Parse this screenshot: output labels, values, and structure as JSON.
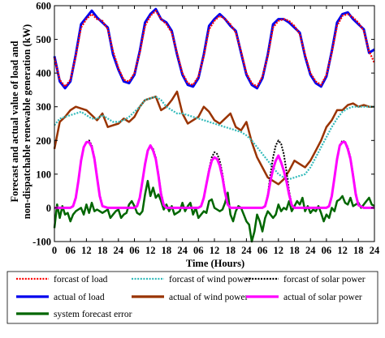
{
  "chart_data": {
    "type": "line",
    "title": "",
    "xlabel": "Time (Hours)",
    "ylabel_lines": [
      "Forecast and actual value of load and",
      "non-dispatchable renewable generation (kW)"
    ],
    "x_tick_labels": [
      "0",
      "06",
      "12",
      "18",
      "24",
      "06",
      "12",
      "18",
      "24",
      "06",
      "12",
      "18",
      "24",
      "06",
      "12",
      "18",
      "24",
      "06",
      "12",
      "18",
      "24"
    ],
    "xlim": [
      0,
      120
    ],
    "ylim": [
      -100,
      600
    ],
    "y_ticks": [
      -100,
      0,
      100,
      200,
      300,
      400,
      500,
      600
    ],
    "grid": false,
    "legend_placement": "below",
    "series": [
      {
        "name": "forcast of load",
        "color": "#ff0000",
        "style": "dotted",
        "width": 2.2,
        "x": [
          0,
          2,
          4,
          6,
          8,
          10,
          12,
          14,
          16,
          18,
          20,
          22,
          24,
          26,
          28,
          30,
          32,
          34,
          36,
          38,
          40,
          42,
          44,
          46,
          48,
          50,
          52,
          54,
          56,
          58,
          60,
          62,
          64,
          66,
          68,
          70,
          72,
          74,
          76,
          78,
          80,
          82,
          84,
          86,
          88,
          90,
          92,
          94,
          96,
          98,
          100,
          102,
          104,
          106,
          108,
          110,
          112,
          114,
          116,
          118,
          120
        ],
        "values": [
          445,
          380,
          360,
          380,
          450,
          535,
          560,
          575,
          560,
          555,
          530,
          465,
          415,
          380,
          375,
          400,
          460,
          540,
          570,
          585,
          560,
          545,
          520,
          460,
          400,
          370,
          365,
          390,
          450,
          530,
          555,
          570,
          560,
          545,
          520,
          465,
          400,
          370,
          360,
          390,
          450,
          535,
          555,
          560,
          555,
          540,
          515,
          455,
          400,
          375,
          365,
          395,
          460,
          540,
          570,
          575,
          565,
          550,
          525,
          465,
          430
        ]
      },
      {
        "name": "actual of load",
        "color": "#0000ee",
        "style": "solid",
        "width": 3,
        "x": [
          0,
          2,
          4,
          6,
          8,
          10,
          12,
          14,
          16,
          18,
          20,
          22,
          24,
          26,
          28,
          30,
          32,
          34,
          36,
          38,
          40,
          42,
          44,
          46,
          48,
          50,
          52,
          54,
          56,
          58,
          60,
          62,
          64,
          66,
          68,
          70,
          72,
          74,
          76,
          78,
          80,
          82,
          84,
          86,
          88,
          90,
          92,
          94,
          96,
          98,
          100,
          102,
          104,
          106,
          108,
          110,
          112,
          114,
          116,
          118,
          120
        ],
        "values": [
          450,
          375,
          355,
          375,
          455,
          545,
          565,
          585,
          565,
          550,
          535,
          455,
          410,
          375,
          370,
          395,
          465,
          550,
          575,
          590,
          560,
          550,
          525,
          455,
          395,
          365,
          360,
          385,
          455,
          540,
          560,
          575,
          560,
          540,
          525,
          460,
          395,
          365,
          355,
          385,
          455,
          545,
          560,
          560,
          550,
          535,
          520,
          450,
          395,
          370,
          360,
          390,
          465,
          550,
          575,
          580,
          560,
          545,
          530,
          460,
          470
        ]
      },
      {
        "name": "forcast of wind power",
        "color": "#33bbbb",
        "style": "dotted",
        "width": 2.2,
        "x": [
          0,
          2,
          4,
          6,
          8,
          10,
          12,
          14,
          16,
          18,
          20,
          22,
          24,
          26,
          28,
          30,
          32,
          34,
          36,
          38,
          40,
          42,
          44,
          46,
          48,
          50,
          52,
          54,
          56,
          58,
          60,
          62,
          64,
          66,
          68,
          70,
          72,
          74,
          76,
          78,
          80,
          82,
          84,
          86,
          88,
          90,
          92,
          94,
          96,
          98,
          100,
          102,
          104,
          106,
          108,
          110,
          112,
          114,
          116,
          118,
          120
        ],
        "values": [
          245,
          265,
          270,
          275,
          280,
          285,
          275,
          265,
          265,
          275,
          265,
          255,
          255,
          260,
          270,
          285,
          300,
          320,
          325,
          330,
          320,
          300,
          290,
          280,
          280,
          275,
          270,
          265,
          260,
          255,
          250,
          245,
          240,
          235,
          230,
          225,
          215,
          200,
          180,
          160,
          140,
          120,
          100,
          90,
          85,
          90,
          95,
          100,
          120,
          150,
          180,
          210,
          240,
          265,
          285,
          295,
          300,
          300,
          300,
          300,
          300
        ]
      },
      {
        "name": "actual of wind power",
        "color": "#993300",
        "style": "solid",
        "width": 2.5,
        "x": [
          0,
          2,
          4,
          6,
          8,
          10,
          12,
          14,
          16,
          18,
          20,
          22,
          24,
          26,
          28,
          30,
          32,
          34,
          36,
          38,
          40,
          42,
          44,
          46,
          48,
          50,
          52,
          54,
          56,
          58,
          60,
          62,
          64,
          66,
          68,
          70,
          72,
          74,
          76,
          78,
          80,
          82,
          84,
          86,
          88,
          90,
          92,
          94,
          96,
          98,
          100,
          102,
          104,
          106,
          108,
          110,
          112,
          114,
          116,
          118,
          120
        ],
        "values": [
          175,
          255,
          270,
          290,
          300,
          295,
          290,
          275,
          260,
          280,
          240,
          245,
          250,
          265,
          255,
          270,
          300,
          320,
          325,
          330,
          290,
          300,
          320,
          345,
          280,
          250,
          260,
          270,
          300,
          285,
          260,
          250,
          265,
          280,
          240,
          230,
          255,
          195,
          150,
          120,
          90,
          80,
          70,
          85,
          110,
          140,
          130,
          120,
          140,
          170,
          200,
          240,
          260,
          290,
          290,
          305,
          310,
          300,
          305,
          300,
          300
        ]
      },
      {
        "name": "forcast of solar power",
        "color": "#000000",
        "style": "dotted",
        "width": 2,
        "x": [
          0,
          2,
          4,
          6,
          7,
          8,
          9,
          10,
          11,
          12,
          13,
          14,
          15,
          16,
          17,
          18,
          20,
          22,
          24,
          30,
          31,
          32,
          33,
          34,
          35,
          36,
          37,
          38,
          39,
          40,
          41,
          42,
          44,
          48,
          54,
          55,
          56,
          57,
          58,
          59,
          60,
          61,
          62,
          63,
          64,
          65,
          66,
          68,
          72,
          78,
          79,
          80,
          81,
          82,
          83,
          84,
          85,
          86,
          87,
          88,
          89,
          90,
          92,
          96,
          102,
          103,
          104,
          105,
          106,
          107,
          108,
          109,
          110,
          111,
          112,
          113,
          114,
          116,
          120
        ],
        "values": [
          0,
          0,
          0,
          0,
          5,
          30,
          80,
          140,
          180,
          195,
          200,
          185,
          150,
          95,
          40,
          5,
          0,
          0,
          0,
          0,
          5,
          30,
          80,
          130,
          170,
          185,
          175,
          150,
          100,
          45,
          10,
          0,
          0,
          0,
          0,
          5,
          30,
          70,
          115,
          150,
          165,
          160,
          140,
          100,
          50,
          15,
          0,
          0,
          0,
          0,
          5,
          40,
          100,
          150,
          185,
          200,
          190,
          160,
          110,
          50,
          10,
          0,
          0,
          0,
          0,
          5,
          35,
          90,
          145,
          185,
          200,
          195,
          180,
          150,
          100,
          45,
          10,
          0,
          0
        ]
      },
      {
        "name": "actual of solar power",
        "color": "#ff00ff",
        "style": "solid",
        "width": 3,
        "x": [
          0,
          2,
          4,
          6,
          7,
          8,
          9,
          10,
          11,
          12,
          13,
          14,
          15,
          16,
          17,
          18,
          20,
          22,
          24,
          30,
          31,
          32,
          33,
          34,
          35,
          36,
          37,
          38,
          39,
          40,
          41,
          42,
          44,
          48,
          54,
          55,
          56,
          57,
          58,
          59,
          60,
          61,
          62,
          63,
          64,
          65,
          66,
          68,
          72,
          78,
          79,
          80,
          81,
          82,
          83,
          84,
          85,
          86,
          87,
          88,
          89,
          90,
          92,
          96,
          102,
          103,
          104,
          105,
          106,
          107,
          108,
          109,
          110,
          111,
          112,
          113,
          114,
          116,
          120
        ],
        "values": [
          0,
          0,
          0,
          0,
          5,
          30,
          80,
          140,
          180,
          195,
          195,
          180,
          145,
          90,
          35,
          5,
          0,
          0,
          0,
          0,
          5,
          30,
          80,
          130,
          170,
          185,
          170,
          145,
          95,
          40,
          8,
          0,
          0,
          0,
          0,
          5,
          30,
          70,
          110,
          140,
          150,
          145,
          125,
          90,
          45,
          10,
          0,
          0,
          0,
          0,
          5,
          35,
          80,
          115,
          140,
          155,
          135,
          110,
          80,
          40,
          8,
          0,
          0,
          0,
          0,
          5,
          35,
          90,
          145,
          185,
          195,
          195,
          175,
          145,
          95,
          40,
          8,
          0,
          0
        ]
      },
      {
        "name": "system forecast error",
        "color": "#006600",
        "style": "solid",
        "width": 2.5,
        "x": [
          0,
          1,
          2,
          3,
          4,
          5,
          6,
          7,
          8,
          9,
          10,
          11,
          12,
          13,
          14,
          15,
          16,
          17,
          18,
          19,
          20,
          21,
          22,
          23,
          24,
          25,
          26,
          27,
          28,
          29,
          30,
          31,
          32,
          33,
          34,
          35,
          36,
          37,
          38,
          39,
          40,
          41,
          42,
          43,
          44,
          45,
          46,
          47,
          48,
          49,
          50,
          51,
          52,
          53,
          54,
          55,
          56,
          57,
          58,
          59,
          60,
          61,
          62,
          63,
          64,
          65,
          66,
          67,
          68,
          69,
          70,
          71,
          72,
          73,
          74,
          75,
          76,
          77,
          78,
          79,
          80,
          81,
          82,
          83,
          84,
          85,
          86,
          87,
          88,
          89,
          90,
          91,
          92,
          93,
          94,
          95,
          96,
          97,
          98,
          99,
          100,
          101,
          102,
          103,
          104,
          105,
          106,
          107,
          108,
          109,
          110,
          111,
          112,
          113,
          114,
          115,
          116,
          117,
          118,
          119,
          120
        ],
        "values": [
          -60,
          10,
          -30,
          5,
          -20,
          -15,
          -40,
          -20,
          -10,
          -5,
          0,
          -20,
          10,
          -15,
          15,
          -10,
          -5,
          -10,
          -15,
          -10,
          -5,
          -30,
          -20,
          -10,
          -5,
          -30,
          -20,
          -15,
          10,
          20,
          5,
          -15,
          -20,
          -10,
          40,
          80,
          35,
          60,
          30,
          40,
          20,
          -5,
          10,
          -10,
          5,
          -20,
          -15,
          -10,
          15,
          -10,
          5,
          15,
          -20,
          0,
          -30,
          -20,
          -10,
          -15,
          20,
          25,
          0,
          -5,
          -10,
          -5,
          15,
          45,
          -20,
          -40,
          -10,
          5,
          0,
          -20,
          -40,
          -50,
          -100,
          -70,
          -20,
          -40,
          -70,
          -30,
          -10,
          -20,
          -30,
          -20,
          10,
          -10,
          0,
          -5,
          20,
          -10,
          5,
          20,
          10,
          30,
          -10,
          5,
          -15,
          -5,
          -10,
          5,
          -15,
          -40,
          -20,
          -30,
          0,
          -10,
          20,
          25,
          35,
          15,
          10,
          30,
          5,
          10,
          15,
          0,
          10,
          20,
          30,
          10,
          5
        ]
      }
    ]
  }
}
